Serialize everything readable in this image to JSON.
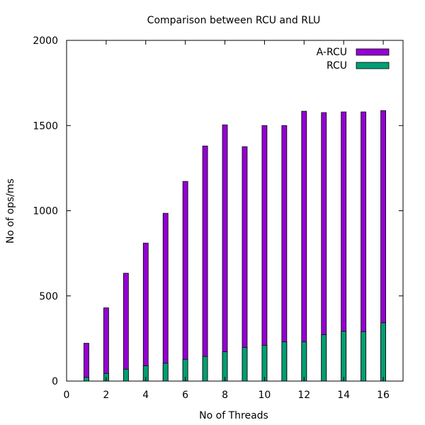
{
  "chart_data": {
    "type": "bar",
    "title": "Comparison between RCU and RLU",
    "xlabel": "No of Threads",
    "ylabel": "No of ops/ms",
    "xlim": [
      0,
      17
    ],
    "ylim": [
      0,
      2000
    ],
    "xticks": [
      0,
      2,
      4,
      6,
      8,
      10,
      12,
      14,
      16
    ],
    "yticks": [
      0,
      500,
      1000,
      1500,
      2000
    ],
    "grid": false,
    "legend_position": "top-right",
    "x": [
      1,
      2,
      3,
      4,
      5,
      6,
      7,
      8,
      9,
      10,
      11,
      12,
      13,
      14,
      15,
      16
    ],
    "series": [
      {
        "name": "A-RCU",
        "color": "#9400d3",
        "values": [
          222,
          430,
          633,
          810,
          985,
          1172,
          1380,
          1504,
          1376,
          1500,
          1500,
          1584,
          1576,
          1580,
          1580,
          1588
        ]
      },
      {
        "name": "RCU",
        "color": "#009e73",
        "values": [
          22,
          45,
          70,
          90,
          105,
          128,
          145,
          172,
          198,
          210,
          230,
          230,
          272,
          292,
          290,
          342
        ]
      }
    ]
  }
}
